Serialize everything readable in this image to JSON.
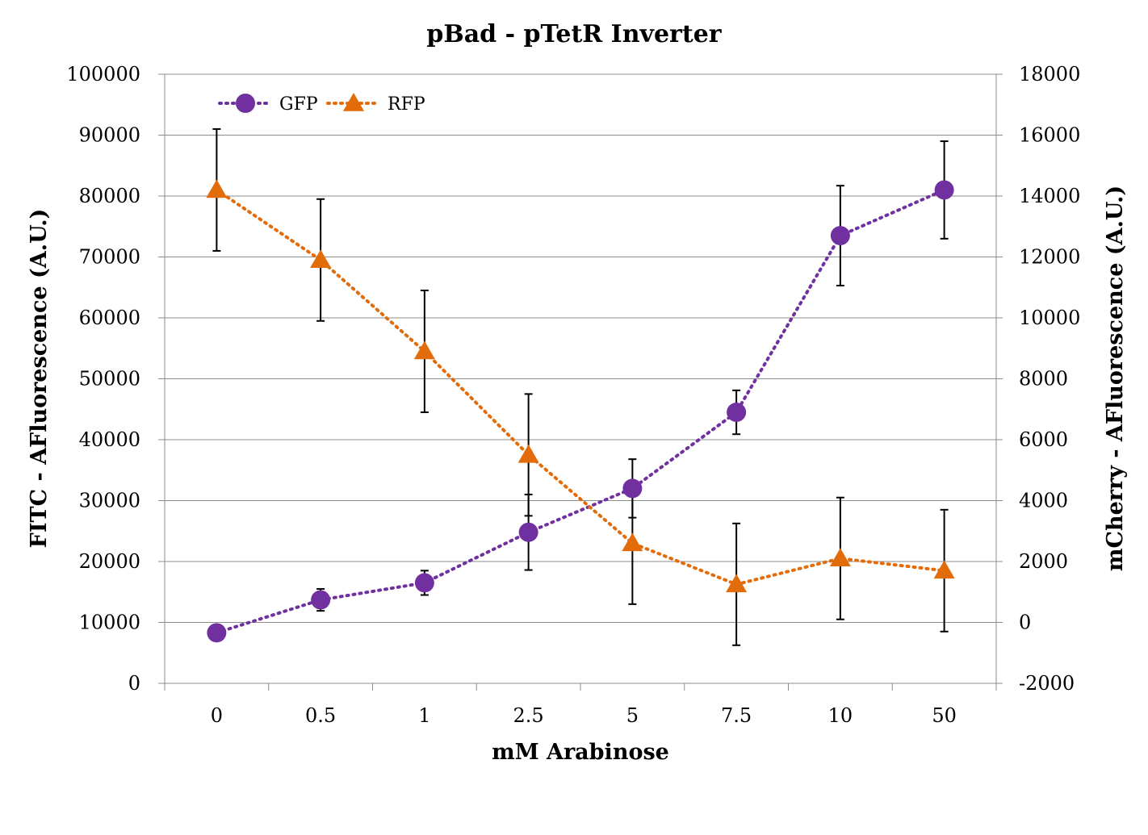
{
  "chart_data": {
    "type": "line",
    "title": "pBad - pTetR Inverter",
    "xlabel": "mM Arabinose",
    "ylabel": "FITC - AFluorescence (A.U.)",
    "y2label": "mCherry - AFluorescence (A.U.)",
    "categories": [
      "0",
      "0.5",
      "1",
      "2.5",
      "5",
      "7.5",
      "10",
      "50"
    ],
    "ylim": [
      0,
      100000
    ],
    "yticks": [
      0,
      10000,
      20000,
      30000,
      40000,
      50000,
      60000,
      70000,
      80000,
      90000,
      100000
    ],
    "y2lim": [
      -2000,
      18000
    ],
    "y2ticks": [
      -2000,
      0,
      2000,
      4000,
      6000,
      8000,
      10000,
      12000,
      14000,
      16000,
      18000
    ],
    "grid": true,
    "legend_position": "top-left",
    "series": [
      {
        "name": "GFP",
        "axis": "left",
        "marker": "circle",
        "color": "#7030a0",
        "values": [
          8300,
          13700,
          16500,
          24800,
          32000,
          44500,
          73500,
          81000
        ],
        "errors": [
          1000,
          1800,
          2000,
          6200,
          4800,
          3600,
          8200,
          8000
        ]
      },
      {
        "name": "RFP",
        "axis": "right",
        "marker": "triangle",
        "color": "#e36c0a",
        "values": [
          14200,
          11900,
          8900,
          5500,
          2600,
          1250,
          2100,
          1700
        ],
        "errors": [
          2000,
          2000,
          2000,
          2000,
          2000,
          2000,
          2000,
          2000
        ]
      }
    ]
  }
}
